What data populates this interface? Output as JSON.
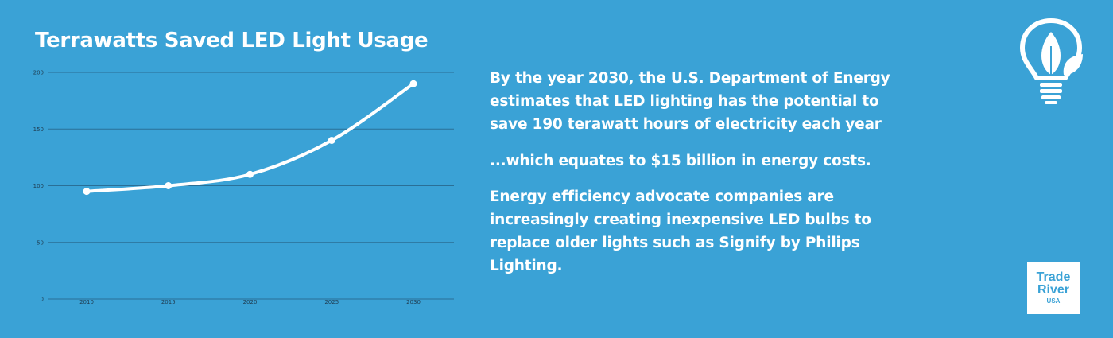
{
  "chart_data": {
    "type": "line",
    "title": "Terrawatts Saved LED Light Usage",
    "x": [
      "2010",
      "2015",
      "2020",
      "2025",
      "2030"
    ],
    "series": [
      {
        "values": [
          95,
          100,
          110,
          140,
          190
        ]
      }
    ],
    "ylim": [
      0,
      200
    ],
    "yticks": [
      0,
      50,
      100,
      150,
      200
    ],
    "grid": true,
    "line_color": "#ffffff",
    "grid_color": "#2a6f96"
  },
  "paragraphs": [
    "By the year 2030, the U.S. Department of Energy  estimates that LED lighting has the potential to save 190 terawatt hours of electricity each year",
    "...which equates to $15 billion in energy costs.",
    "Energy efficiency advocate companies are increasingly creating inexpensive LED bulbs  to replace older lights such as Signify by Philips Lighting."
  ],
  "icons": {
    "bulb": "lightbulb-leaf-icon"
  },
  "logo": {
    "line1": "Trade",
    "line2": "River",
    "line3": "USA",
    "bg": "#ffffff",
    "fg": "#3aa2d6"
  },
  "colors": {
    "background": "#3aa2d6",
    "text": "#ffffff"
  }
}
